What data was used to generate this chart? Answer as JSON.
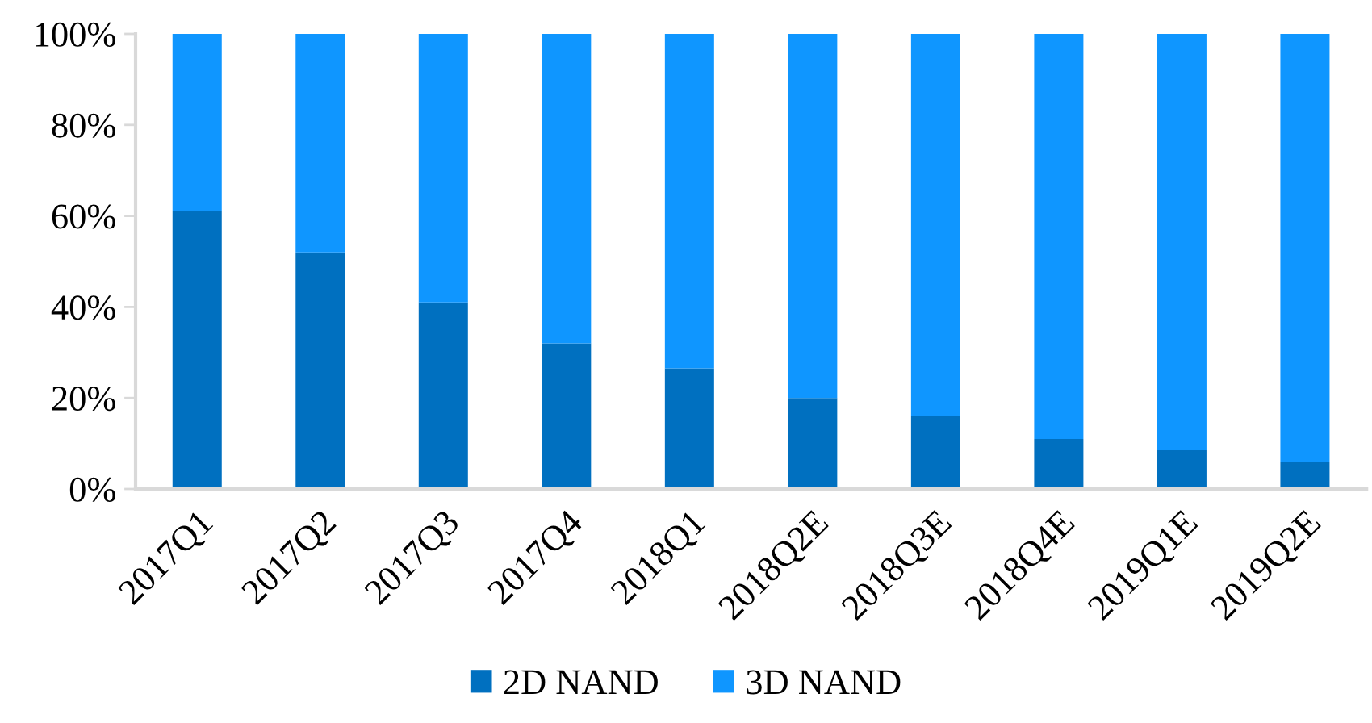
{
  "chart_data": {
    "type": "bar",
    "stacked": true,
    "categories": [
      "2017Q1",
      "2017Q2",
      "2017Q3",
      "2017Q4",
      "2018Q1",
      "2018Q2E",
      "2018Q3E",
      "2018Q4E",
      "2019Q1E",
      "2019Q2E"
    ],
    "series": [
      {
        "name": "2D NAND",
        "color": "#0070c0",
        "values": [
          61,
          52,
          41,
          32,
          26.5,
          20,
          16,
          11,
          8.5,
          6
        ]
      },
      {
        "name": "3D NAND",
        "color": "#0f96ff",
        "values": [
          39,
          48,
          59,
          68,
          73.5,
          80,
          84,
          89,
          91.5,
          94
        ]
      }
    ],
    "ylim": [
      0,
      100
    ],
    "yticks": [
      {
        "value": 0,
        "label": "0%"
      },
      {
        "value": 20,
        "label": "20%"
      },
      {
        "value": 40,
        "label": "40%"
      },
      {
        "value": 60,
        "label": "60%"
      },
      {
        "value": 80,
        "label": "80%"
      },
      {
        "value": 100,
        "label": "100%"
      }
    ],
    "grid": false,
    "legend": "bottom"
  }
}
